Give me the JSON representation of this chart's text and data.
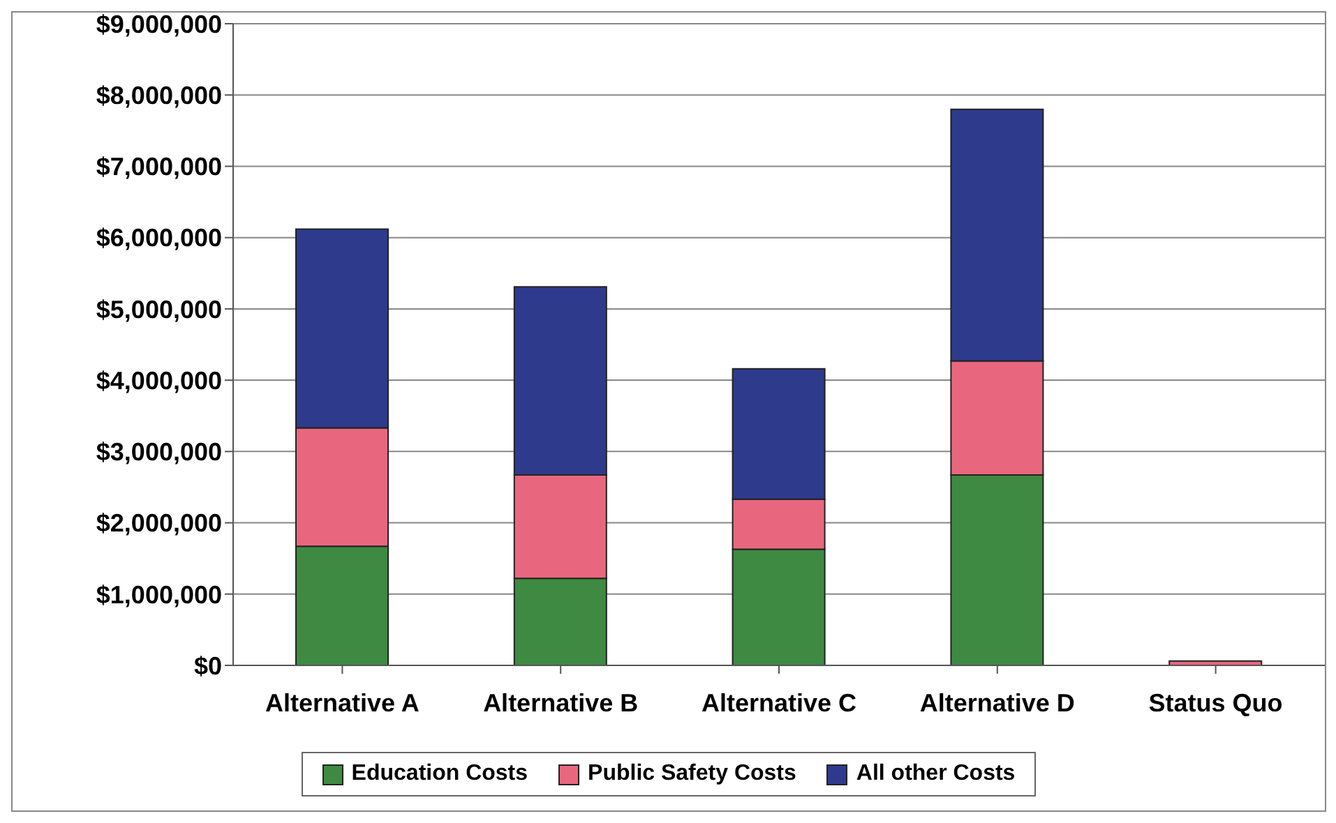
{
  "chart_data": {
    "type": "bar",
    "stacked": true,
    "categories": [
      "Alternative A",
      "Alternative B",
      "Alternative C",
      "Alternative D",
      "Status Quo"
    ],
    "series": [
      {
        "name": "Education Costs",
        "color": "#3e8a42",
        "values": [
          1670000,
          1220000,
          1630000,
          2670000,
          null
        ]
      },
      {
        "name": "Public Safety Costs",
        "color": "#e8677f",
        "values": [
          1660000,
          1450000,
          700000,
          1600000,
          60000
        ]
      },
      {
        "name": "All other Costs",
        "color": "#2e3a8c",
        "values": [
          2790000,
          2640000,
          1830000,
          3530000,
          null
        ]
      }
    ],
    "ylim": [
      0,
      9000000
    ],
    "yticks": [
      {
        "value": 0,
        "label": "$0"
      },
      {
        "value": 1000000,
        "label": "$1,000,000"
      },
      {
        "value": 2000000,
        "label": "$2,000,000"
      },
      {
        "value": 3000000,
        "label": "$3,000,000"
      },
      {
        "value": 4000000,
        "label": "$4,000,000"
      },
      {
        "value": 5000000,
        "label": "$5,000,000"
      },
      {
        "value": 6000000,
        "label": "$6,000,000"
      },
      {
        "value": 7000000,
        "label": "$7,000,000"
      },
      {
        "value": 8000000,
        "label": "$8,000,000"
      },
      {
        "value": 9000000,
        "label": "$9,000,000"
      }
    ],
    "grid": "y",
    "legend": "bottom"
  }
}
